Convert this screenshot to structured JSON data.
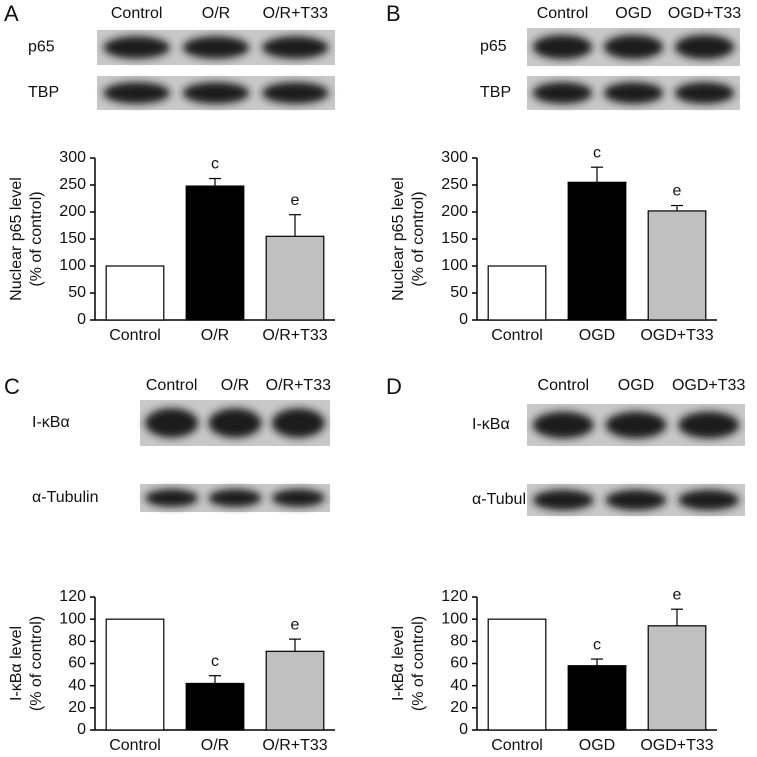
{
  "chart_data": [
    {
      "type": "bar",
      "panel": "A",
      "blot_lanes": [
        "Control",
        "O/R",
        "O/R+T33"
      ],
      "blot_rows": [
        "p65",
        "TBP"
      ],
      "ylabel": [
        "Nuclear p65 level",
        "(% of control)"
      ],
      "categories": [
        "Control",
        "O/R",
        "O/R+T33"
      ],
      "values": [
        100,
        248,
        155
      ],
      "errors": [
        0,
        14,
        40
      ],
      "annotations": [
        null,
        "c",
        "e"
      ],
      "colors": [
        "#ffffff",
        "#000000",
        "#c0c0c0"
      ],
      "ylim": [
        0,
        300
      ],
      "yticks": [
        0,
        50,
        100,
        150,
        200,
        250,
        300
      ]
    },
    {
      "type": "bar",
      "panel": "B",
      "blot_lanes": [
        "Control",
        "OGD",
        "OGD+T33"
      ],
      "blot_rows": [
        "p65",
        "TBP"
      ],
      "ylabel": [
        "Nuclear p65 level",
        "(% of control)"
      ],
      "categories": [
        "Control",
        "OGD",
        "OGD+T33"
      ],
      "values": [
        100,
        255,
        202
      ],
      "errors": [
        0,
        28,
        10
      ],
      "annotations": [
        null,
        "c",
        "e"
      ],
      "colors": [
        "#ffffff",
        "#000000",
        "#c0c0c0"
      ],
      "ylim": [
        0,
        300
      ],
      "yticks": [
        0,
        50,
        100,
        150,
        200,
        250,
        300
      ]
    },
    {
      "type": "bar",
      "panel": "C",
      "blot_lanes": [
        "Control",
        "O/R",
        "O/R+T33"
      ],
      "blot_rows": [
        "I-κBα",
        "α-Tubulin"
      ],
      "ylabel": [
        "I-κBα level",
        "(% of control)"
      ],
      "categories": [
        "Control",
        "O/R",
        "O/R+T33"
      ],
      "values": [
        100,
        42,
        71
      ],
      "errors": [
        0,
        7,
        11
      ],
      "annotations": [
        null,
        "c",
        "e"
      ],
      "colors": [
        "#ffffff",
        "#000000",
        "#c0c0c0"
      ],
      "ylim": [
        0,
        120
      ],
      "yticks": [
        0,
        20,
        40,
        60,
        80,
        100,
        120
      ]
    },
    {
      "type": "bar",
      "panel": "D",
      "blot_lanes": [
        "Control",
        "OGD",
        "OGD+T33"
      ],
      "blot_rows": [
        "I-κBα",
        "α-Tubulin"
      ],
      "ylabel": [
        "I-κBα level",
        "(% of control)"
      ],
      "categories": [
        "Control",
        "OGD",
        "OGD+T33"
      ],
      "values": [
        100,
        58,
        94
      ],
      "errors": [
        0,
        6,
        15
      ],
      "annotations": [
        null,
        "c",
        "e"
      ],
      "colors": [
        "#ffffff",
        "#000000",
        "#c0c0c0"
      ],
      "ylim": [
        0,
        120
      ],
      "yticks": [
        0,
        20,
        40,
        60,
        80,
        100,
        120
      ]
    }
  ]
}
